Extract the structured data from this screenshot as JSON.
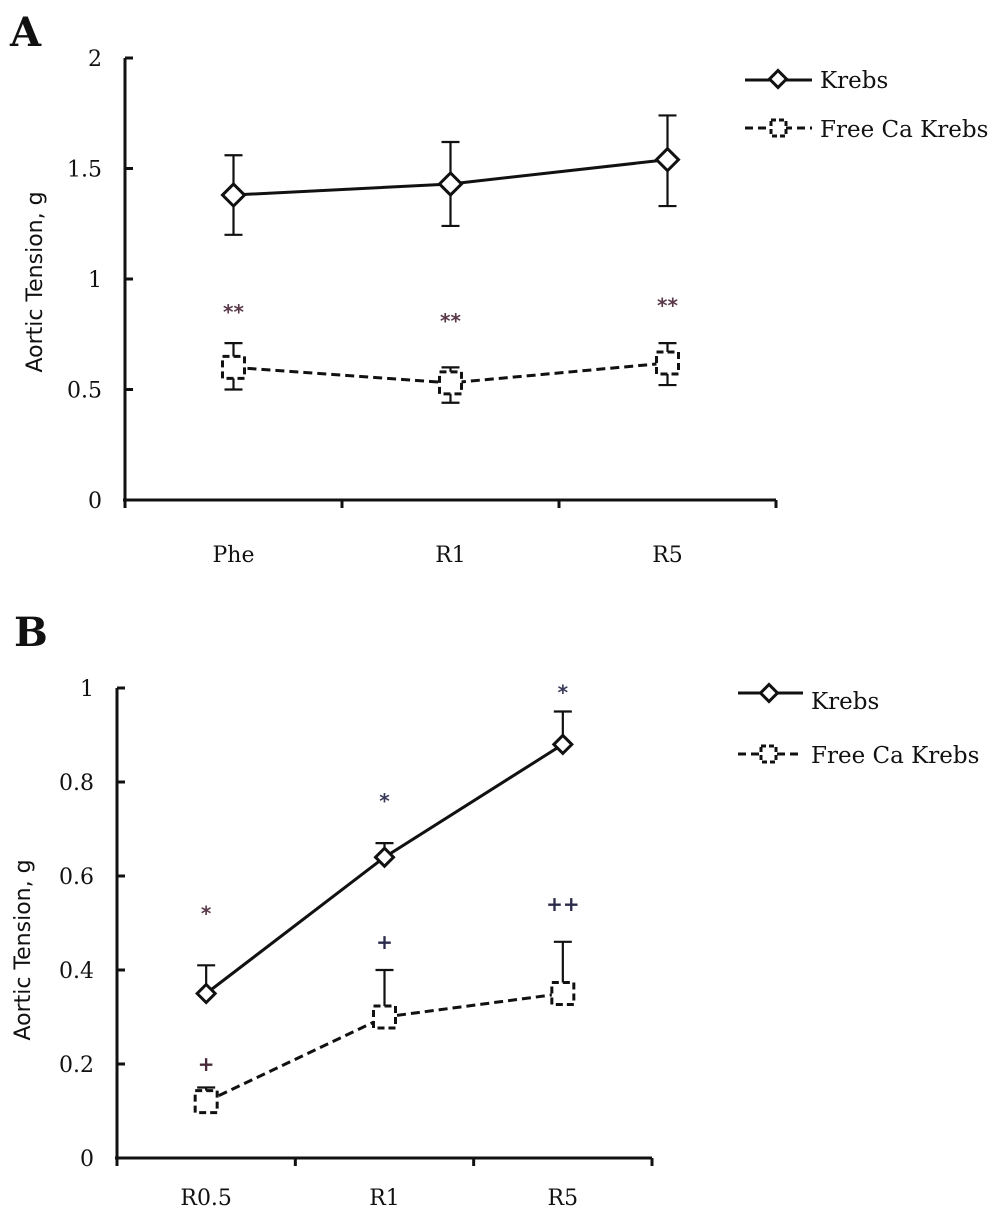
{
  "chart_data": [
    {
      "panel": "A",
      "type": "line",
      "title": "",
      "xlabel": "",
      "ylabel": "Aortic Tension, g",
      "ylim": [
        0,
        2
      ],
      "yticks": [
        "0",
        "0.5",
        "1",
        "1.5",
        "2"
      ],
      "ytick_values": [
        0,
        0.5,
        1,
        1.5,
        2
      ],
      "categories": [
        "Phe",
        "R1",
        "R5"
      ],
      "grid": false,
      "legend_position": "top-right",
      "series": [
        {
          "name": "Krebs",
          "style": "solid-diamond",
          "values": [
            1.38,
            1.43,
            1.54
          ],
          "err_upper": [
            1.56,
            1.62,
            1.74
          ],
          "err_lower": [
            1.2,
            1.24,
            1.33
          ]
        },
        {
          "name": "Free Ca Krebs",
          "style": "dashed-square",
          "values": [
            0.6,
            0.53,
            0.62
          ],
          "err_upper": [
            0.71,
            0.6,
            0.71
          ],
          "err_lower": [
            0.5,
            0.44,
            0.52
          ]
        }
      ],
      "annotations": [
        {
          "text": "**",
          "category": "Phe",
          "y": 0.85,
          "color": "#5a3a4a"
        },
        {
          "text": "**",
          "category": "R1",
          "y": 0.81,
          "color": "#5a3a4a"
        },
        {
          "text": "**",
          "category": "R5",
          "y": 0.88,
          "color": "#5a3a4a"
        }
      ]
    },
    {
      "panel": "B",
      "type": "line",
      "title": "",
      "xlabel": "",
      "ylabel": "Aortic Tension, g",
      "ylim": [
        0,
        1
      ],
      "yticks": [
        "0",
        "0.2",
        "0.4",
        "0.6",
        "0.8",
        "1"
      ],
      "ytick_values": [
        0,
        0.2,
        0.4,
        0.6,
        0.8,
        1
      ],
      "categories": [
        "R0.5",
        "R1",
        "R5"
      ],
      "grid": false,
      "legend_position": "top-right",
      "series": [
        {
          "name": "Krebs",
          "style": "solid-diamond",
          "values": [
            0.35,
            0.64,
            0.88
          ],
          "err_upper": [
            0.41,
            0.67,
            0.95
          ],
          "err_lower": [
            null,
            null,
            null
          ]
        },
        {
          "name": "Free Ca Krebs",
          "style": "dashed-square",
          "values": [
            0.12,
            0.3,
            0.35
          ],
          "err_upper": [
            0.15,
            0.4,
            0.46
          ],
          "err_lower": [
            null,
            null,
            null
          ]
        }
      ],
      "annotations": [
        {
          "text": "*",
          "category": "R0.5",
          "y": 0.52,
          "color": "#5a3a4a"
        },
        {
          "text": "*",
          "category": "R1",
          "y": 0.76,
          "color": "#3a3a5a"
        },
        {
          "text": "*",
          "category": "R5",
          "y": 0.99,
          "color": "#3a3a5a"
        },
        {
          "text": "+",
          "category": "R0.5",
          "y": 0.2,
          "color": "#4a2a3a"
        },
        {
          "text": "+",
          "category": "R1",
          "y": 0.46,
          "color": "#2a2a4a"
        },
        {
          "text": "++",
          "category": "R5",
          "y": 0.54,
          "color": "#2a2a4a"
        }
      ]
    }
  ]
}
